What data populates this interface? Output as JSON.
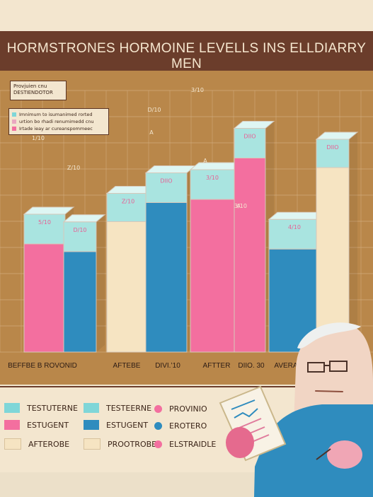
{
  "chart_data": {
    "type": "bar",
    "title": "HORMSTRONES HORMOINE LEVELLS INS ELLDIARRY MEN",
    "categories": [
      "BEFFBE B ROVONID",
      "AFTEBE",
      "DIVI.’10",
      "AFTTER",
      "DIIO. 30",
      "AVERA"
    ],
    "bar_labels": [
      "5/10",
      "D/10",
      "Z/10",
      "DIIO",
      "3/10",
      "DIIO",
      "4/10",
      "DIIO",
      "3/10",
      "DIIO"
    ],
    "bar_top_labels": [
      "5/10",
      "D/10",
      "Z/10",
      "DIIO",
      "3/10",
      "DIIO",
      "3/10",
      "DIIO",
      "3/10",
      "DIIO"
    ],
    "marks": [
      {
        "series": "pink",
        "value": 170
      },
      {
        "series": "blue",
        "value": 158
      },
      {
        "series": "cream",
        "value": 205
      },
      {
        "series": "blue",
        "value": 235
      },
      {
        "series": "pink",
        "value": 240
      },
      {
        "series": "pink",
        "value": 305
      },
      {
        "series": "blue",
        "value": 162
      },
      {
        "series": "cream",
        "value": 290
      },
      {
        "series": "pink",
        "value": 362
      },
      {
        "series": "blue",
        "value": 168
      }
    ],
    "top_annotations": [
      "1/10",
      "Z/10",
      "D/10",
      "A",
      "3/10",
      "A",
      "3/10",
      "A",
      "Z/10",
      "D/10"
    ],
    "ylim": [
      0,
      400
    ],
    "grid": true
  },
  "callout": {
    "line1": "Provjuien cnu",
    "line2": "DESTIENDOTOR"
  },
  "mini_legend": [
    {
      "text": "Imnimum to isumanimed rorted",
      "color": "#7fd6d8"
    },
    {
      "text": "urtion bo rhadi renumimedd cnu",
      "color": "#e9a8c0"
    },
    {
      "text": "Irtade ieay ar cureanspommeec",
      "color": "#f36f9f"
    }
  ],
  "legend": {
    "left": [
      {
        "label": "TESTUTERNE",
        "color": "#7fd6d8"
      },
      {
        "label": "ESTUGENT",
        "color": "#f36f9f"
      },
      {
        "label": "AFTEROBE",
        "color": "#f6e4c2"
      }
    ],
    "middle": [
      {
        "label": "TESTEERNE",
        "color": "#7fd6d8"
      },
      {
        "label": "ESTUGENT",
        "color": "#2f8cbe"
      },
      {
        "label": "PROOTROBE",
        "color": "#f6e4c2"
      }
    ],
    "right": [
      {
        "label": "PROVINIO",
        "color": "#f36f9f"
      },
      {
        "label": "EROTERO",
        "color": "#2f8cbe"
      },
      {
        "label": "ELSTRAIDLE",
        "color": "#f36f9f"
      }
    ]
  },
  "colors": {
    "pink": "#f36f9f",
    "blue": "#2f8cbe",
    "cyan": "#a9e4e0",
    "cream": "#f6e4c2",
    "brown": "#6b3d2b",
    "plot_bg": "#b9874a"
  }
}
